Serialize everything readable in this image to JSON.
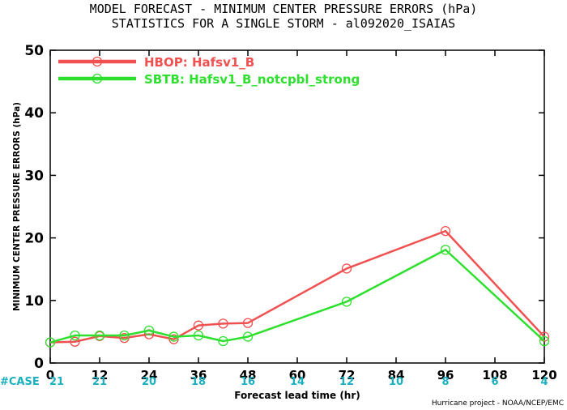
{
  "title_line1": "MODEL FORECAST - MINIMUM CENTER PRESSURE ERRORS (hPa)",
  "title_line2": "STATISTICS FOR A SINGLE STORM - al092020_ISAIAS",
  "case_label": "#CASE",
  "footer_credit": "Hurricane project - NOAA/NCEP/EMC",
  "colors": {
    "hbop": "#f05050",
    "sbtb": "#2ee02e",
    "cases": "#1ab0c0"
  },
  "chart_data": {
    "type": "line",
    "xlabel": "Forecast lead time (hr)",
    "ylabel": "MINIMUM CENTER PRESSURE ERRORS (hPa)",
    "xlim": [
      0,
      120
    ],
    "ylim": [
      0,
      50
    ],
    "xticks": [
      0,
      12,
      24,
      36,
      48,
      60,
      72,
      84,
      96,
      108,
      120
    ],
    "yticks": [
      0,
      10,
      20,
      30,
      40,
      50
    ],
    "grid": false,
    "legend_position": "top-left",
    "case_counts": [
      21,
      21,
      20,
      18,
      16,
      14,
      12,
      10,
      8,
      6,
      4
    ],
    "series": [
      {
        "name": "HBOP: Hafsv1_B",
        "x": [
          0,
          6,
          12,
          18,
          24,
          30,
          36,
          42,
          48,
          72,
          96,
          120
        ],
        "y": [
          3.3,
          3.4,
          4.3,
          4.0,
          4.6,
          3.8,
          6.0,
          6.3,
          6.4,
          15.1,
          21.1,
          4.2
        ]
      },
      {
        "name": "SBTB: Hafsv1_B_notcpbl_strong",
        "x": [
          0,
          6,
          12,
          18,
          24,
          30,
          36,
          42,
          48,
          72,
          96,
          120
        ],
        "y": [
          3.3,
          4.4,
          4.4,
          4.4,
          5.2,
          4.2,
          4.4,
          3.5,
          4.2,
          9.8,
          18.1,
          3.5
        ]
      }
    ]
  }
}
